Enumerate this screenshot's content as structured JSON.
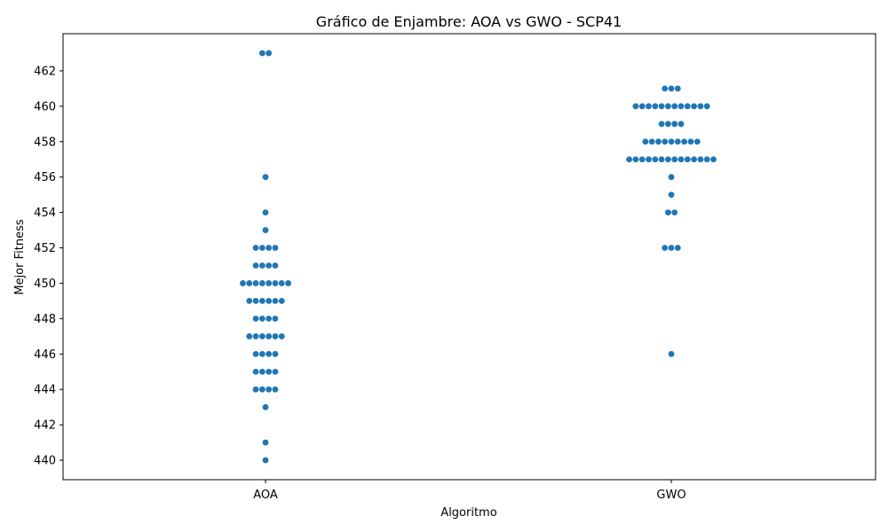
{
  "chart_data": {
    "type": "scatter",
    "subtype": "swarm",
    "title": "Gráfico de Enjambre: AOA vs GWO - SCP41",
    "xlabel": "Algoritmo",
    "ylabel": "Mejor Fitness",
    "categories": [
      "AOA",
      "GWO"
    ],
    "ylim": [
      438.9,
      464.1
    ],
    "yticks": [
      440,
      442,
      444,
      446,
      448,
      450,
      452,
      454,
      456,
      458,
      460,
      462
    ],
    "grid": false,
    "point_color": "#1f77b4",
    "series": [
      {
        "category": "AOA",
        "values": [
          463,
          463,
          456,
          454,
          453,
          452,
          452,
          452,
          452,
          451,
          451,
          451,
          451,
          450,
          450,
          450,
          450,
          450,
          450,
          450,
          450,
          449,
          449,
          449,
          449,
          449,
          449,
          448,
          448,
          448,
          448,
          447,
          447,
          447,
          447,
          447,
          447,
          446,
          446,
          446,
          446,
          445,
          445,
          445,
          445,
          444,
          444,
          444,
          444,
          443,
          441,
          440
        ]
      },
      {
        "category": "GWO",
        "values": [
          461,
          461,
          461,
          460,
          460,
          460,
          460,
          460,
          460,
          460,
          460,
          460,
          460,
          460,
          460,
          459,
          459,
          459,
          459,
          458,
          458,
          458,
          458,
          458,
          458,
          458,
          458,
          458,
          457,
          457,
          457,
          457,
          457,
          457,
          457,
          457,
          457,
          457,
          457,
          457,
          457,
          457,
          456,
          455,
          454,
          454,
          452,
          452,
          452,
          446
        ]
      }
    ]
  }
}
